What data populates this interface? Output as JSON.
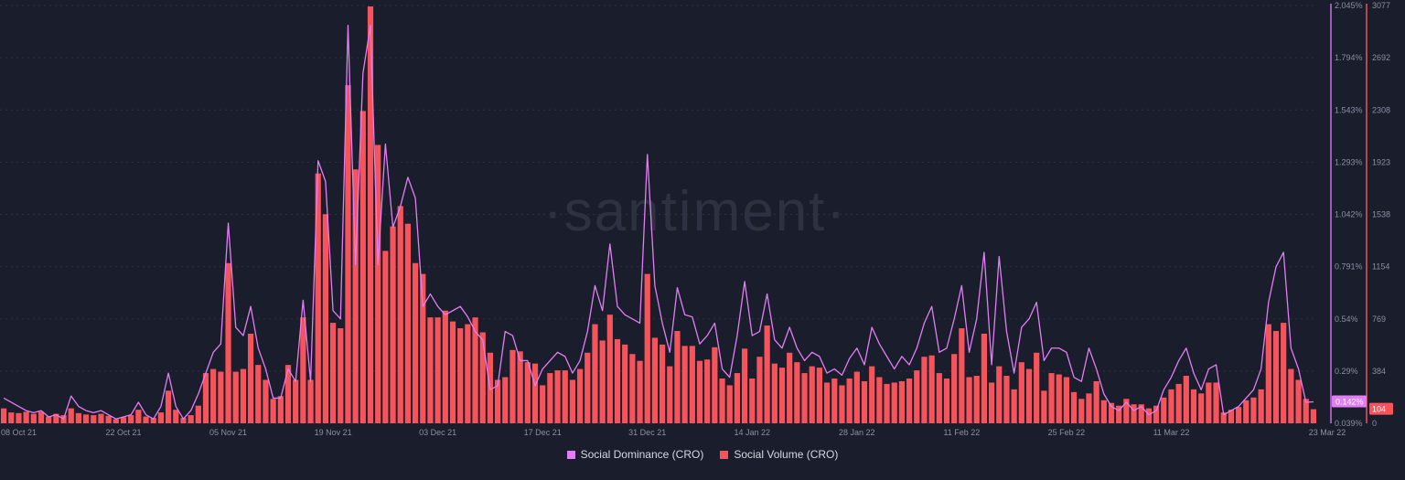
{
  "watermark": "·santiment·",
  "colors": {
    "background": "#1a1d2b",
    "bars": "#f6535a",
    "line": "#e27ef4",
    "axis_text": "#8a8fa3",
    "left_axis_line": "#c774e0",
    "right_axis_line": "#e8575e",
    "grid": "#2c3042",
    "dominance_badge": "#e27ef4",
    "volume_badge": "#f6535a"
  },
  "chart_data": {
    "type": "bar",
    "title": "",
    "x_tick_labels": [
      "08 Oct 21",
      "22 Oct 21",
      "05 Nov 21",
      "19 Nov 21",
      "03 Dec 21",
      "17 Dec 21",
      "31 Dec 21",
      "14 Jan 22",
      "28 Jan 22",
      "11 Feb 22",
      "25 Feb 22",
      "11 Mar 22",
      "23 Mar 22"
    ],
    "x_start": "2021-10-06",
    "x_end": "2022-03-23",
    "dominance_axis": {
      "unit": "%",
      "range": [
        0.039,
        2.045
      ],
      "tick_labels": [
        "2.045%",
        "1.794%",
        "1.543%",
        "1.293%",
        "1.042%",
        "0.791%",
        "0.54%",
        "0.29%",
        "0.039%"
      ]
    },
    "volume_axis": {
      "range": [
        0,
        3077
      ],
      "tick_labels": [
        "3077",
        "2692",
        "2308",
        "1923",
        "1538",
        "1154",
        "769",
        "384",
        "0"
      ]
    },
    "current_values": {
      "dominance": "0.142%",
      "volume": "104"
    },
    "series": [
      {
        "name": "Social Dominance (CRO)",
        "type": "line",
        "values": [
          0.16,
          0.14,
          0.12,
          0.1,
          0.09,
          0.1,
          0.07,
          0.08,
          0.06,
          0.17,
          0.12,
          0.1,
          0.09,
          0.1,
          0.08,
          0.06,
          0.07,
          0.08,
          0.14,
          0.08,
          0.06,
          0.12,
          0.28,
          0.12,
          0.06,
          0.1,
          0.18,
          0.28,
          0.38,
          0.42,
          1.0,
          0.5,
          0.46,
          0.6,
          0.4,
          0.3,
          0.16,
          0.16,
          0.3,
          0.24,
          0.63,
          0.24,
          1.3,
          1.2,
          0.58,
          0.54,
          1.95,
          0.8,
          1.72,
          1.95,
          0.8,
          1.38,
          0.98,
          1.08,
          1.22,
          1.12,
          0.6,
          0.66,
          0.6,
          0.56,
          0.58,
          0.6,
          0.55,
          0.48,
          0.44,
          0.2,
          0.22,
          0.48,
          0.46,
          0.34,
          0.34,
          0.22,
          0.3,
          0.34,
          0.38,
          0.36,
          0.28,
          0.34,
          0.48,
          0.7,
          0.58,
          0.9,
          0.6,
          0.56,
          0.54,
          0.52,
          1.33,
          0.7,
          0.52,
          0.38,
          0.69,
          0.56,
          0.55,
          0.42,
          0.46,
          0.52,
          0.3,
          0.26,
          0.46,
          0.72,
          0.46,
          0.48,
          0.66,
          0.44,
          0.4,
          0.5,
          0.4,
          0.34,
          0.38,
          0.36,
          0.28,
          0.3,
          0.27,
          0.35,
          0.4,
          0.32,
          0.5,
          0.42,
          0.36,
          0.3,
          0.36,
          0.32,
          0.4,
          0.52,
          0.6,
          0.38,
          0.4,
          0.54,
          0.7,
          0.38,
          0.54,
          0.86,
          0.32,
          0.84,
          0.48,
          0.28,
          0.5,
          0.54,
          0.62,
          0.34,
          0.4,
          0.4,
          0.38,
          0.26,
          0.24,
          0.4,
          0.3,
          0.18,
          0.12,
          0.1,
          0.14,
          0.1,
          0.12,
          0.08,
          0.1,
          0.2,
          0.26,
          0.34,
          0.4,
          0.28,
          0.2,
          0.3,
          0.32,
          0.08,
          0.1,
          0.12,
          0.16,
          0.2,
          0.3,
          0.62,
          0.79,
          0.86,
          0.4,
          0.3,
          0.14,
          0.142
        ]
      },
      {
        "name": "Social Volume (CRO)",
        "type": "bar",
        "values": [
          110,
          80,
          75,
          85,
          70,
          85,
          50,
          70,
          60,
          110,
          75,
          65,
          60,
          70,
          55,
          30,
          45,
          60,
          100,
          50,
          40,
          80,
          240,
          100,
          40,
          60,
          130,
          370,
          400,
          380,
          1180,
          380,
          400,
          660,
          430,
          320,
          180,
          200,
          430,
          320,
          780,
          320,
          1840,
          1540,
          740,
          700,
          2490,
          1870,
          2300,
          3070,
          2050,
          1270,
          1450,
          1600,
          1470,
          1180,
          1100,
          780,
          780,
          830,
          750,
          700,
          730,
          780,
          670,
          520,
          320,
          340,
          540,
          530,
          450,
          440,
          280,
          370,
          390,
          390,
          320,
          400,
          520,
          730,
          610,
          800,
          620,
          580,
          510,
          460,
          1100,
          630,
          580,
          420,
          680,
          570,
          570,
          460,
          470,
          560,
          330,
          280,
          370,
          550,
          330,
          490,
          720,
          440,
          410,
          520,
          450,
          370,
          420,
          410,
          300,
          330,
          280,
          330,
          380,
          310,
          420,
          340,
          290,
          300,
          310,
          330,
          390,
          490,
          500,
          370,
          330,
          510,
          700,
          340,
          350,
          660,
          300,
          420,
          350,
          250,
          450,
          400,
          520,
          240,
          370,
          360,
          340,
          230,
          180,
          220,
          310,
          170,
          150,
          130,
          180,
          140,
          140,
          110,
          130,
          190,
          250,
          290,
          350,
          250,
          220,
          300,
          300,
          80,
          100,
          120,
          170,
          190,
          250,
          730,
          680,
          740,
          400,
          320,
          180,
          104
        ]
      }
    ],
    "legend_position": "bottom-center",
    "grid": true
  },
  "legend": {
    "dominance_label": "Social Dominance (CRO)",
    "volume_label": "Social Volume (CRO)"
  }
}
